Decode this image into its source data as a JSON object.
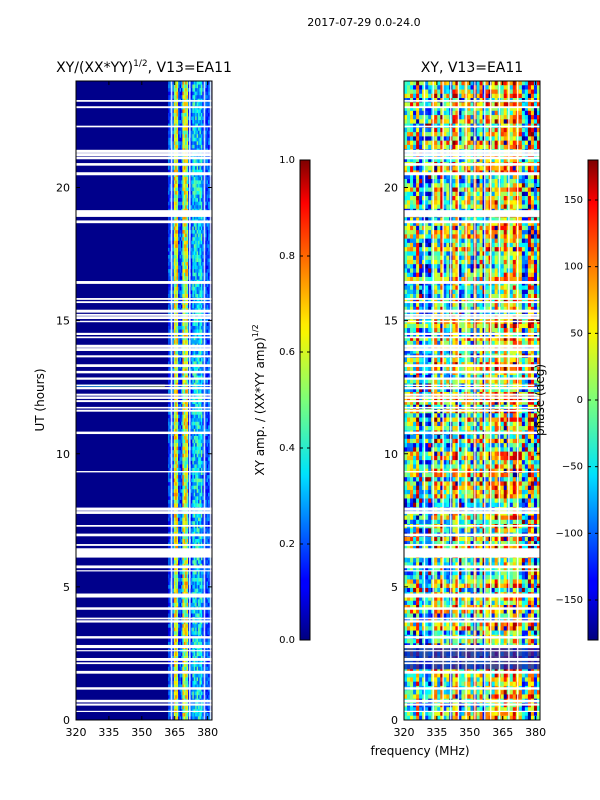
{
  "figure_title": "2017-07-29 0.0-24.0",
  "chart_data": [
    {
      "type": "heatmap",
      "title_main": "XY/(XX*YY)",
      "title_sup": "1/2",
      "title_tail": ", V13=EA11",
      "xlabel": "",
      "ylabel": "UT (hours)",
      "xlim": [
        320,
        382
      ],
      "ylim": [
        0,
        24
      ],
      "xticks": [
        "320",
        "335",
        "350",
        "365",
        "380"
      ],
      "xtick_values": [
        320,
        335,
        350,
        365,
        380
      ],
      "yticks": [
        "0",
        "5",
        "10",
        "15",
        "20"
      ],
      "ytick_values": [
        0,
        5,
        10,
        15,
        20
      ],
      "colorbar": {
        "label_main": "XY amp. / (XX*YY amp)",
        "label_sup": "1/2",
        "range": [
          0.0,
          1.0
        ],
        "ticks": [
          "0.0",
          "0.2",
          "0.4",
          "0.6",
          "0.8",
          "1.0"
        ],
        "tick_values": [
          0.0,
          0.2,
          0.4,
          0.6,
          0.8,
          1.0
        ],
        "colormap": "jet"
      }
    },
    {
      "type": "heatmap",
      "title": "XY, V13=EA11",
      "xlabel": "frequency (MHz)",
      "ylabel": "",
      "xlim": [
        320,
        382
      ],
      "ylim": [
        0,
        24
      ],
      "xticks": [
        "320",
        "335",
        "350",
        "365",
        "380"
      ],
      "xtick_values": [
        320,
        335,
        350,
        365,
        380
      ],
      "yticks": [
        "0",
        "5",
        "10",
        "15",
        "20"
      ],
      "ytick_values": [
        0,
        5,
        10,
        15,
        20
      ],
      "colorbar": {
        "label": "phase (deg)",
        "range": [
          -180,
          180
        ],
        "ticks": [
          "−150",
          "−100",
          "−50",
          "0",
          "50",
          "100",
          "150"
        ],
        "tick_values": [
          -150,
          -100,
          -50,
          0,
          50,
          100,
          150
        ],
        "colormap": "jet"
      }
    }
  ]
}
